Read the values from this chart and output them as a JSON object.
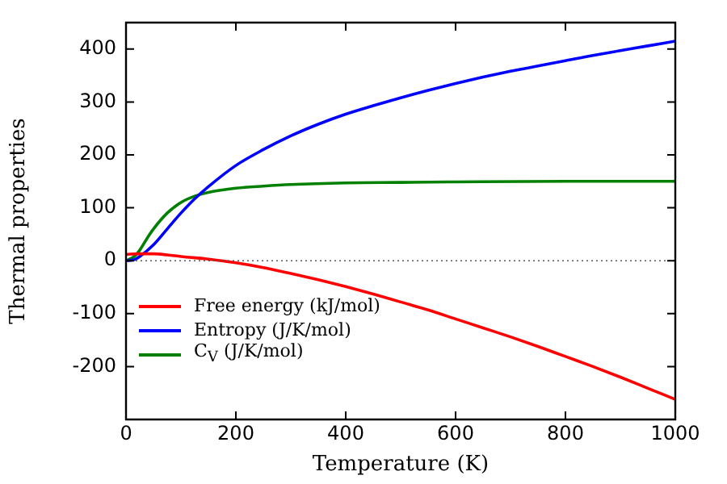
{
  "chart_data": {
    "type": "line",
    "xlabel": "Temperature (K)",
    "ylabel": "Thermal properties",
    "xlim": [
      0,
      1000
    ],
    "xticks": [
      0,
      200,
      400,
      600,
      800,
      1000
    ],
    "ylim": [
      -300,
      450
    ],
    "yticks": [
      -200,
      -100,
      0,
      100,
      200,
      300,
      400
    ],
    "grid": false,
    "legend": "bottom left",
    "marker": "none",
    "line_style": "solid",
    "ref_lines": [
      {
        "axis": "y",
        "value": 0,
        "color": "#555555",
        "line_style": "dotted"
      }
    ],
    "series": [
      {
        "name": "Free energy (kJ/mol)",
        "color": "#ff0000",
        "x": [
          0,
          25,
          50,
          75,
          100,
          150,
          200,
          250,
          300,
          350,
          400,
          450,
          500,
          550,
          600,
          650,
          700,
          750,
          800,
          850,
          900,
          950,
          1000
        ],
        "values": [
          12,
          13,
          13,
          11,
          8,
          3,
          -4,
          -13,
          -24,
          -36,
          -49,
          -63,
          -78,
          -93,
          -110,
          -127,
          -144,
          -162,
          -181,
          -200,
          -220,
          -241,
          -262
        ]
      },
      {
        "name": "Entropy (J/K/mol)",
        "color": "#0000ff",
        "x": [
          0,
          15,
          25,
          50,
          75,
          100,
          125,
          150,
          200,
          250,
          300,
          350,
          400,
          450,
          500,
          550,
          600,
          650,
          700,
          750,
          800,
          850,
          900,
          950,
          1000
        ],
        "values": [
          0,
          2,
          8,
          30,
          60,
          90,
          117,
          140,
          180,
          210,
          236,
          258,
          277,
          293,
          308,
          322,
          335,
          347,
          358,
          368,
          378,
          388,
          397,
          406,
          415
        ]
      },
      {
        "name": "C$_{V}$ (J/K/mol)",
        "color": "#008000",
        "x": [
          0,
          15,
          25,
          40,
          50,
          75,
          100,
          125,
          150,
          200,
          250,
          300,
          400,
          500,
          600,
          800,
          1000
        ],
        "values": [
          0,
          8,
          20,
          45,
          60,
          90,
          110,
          122,
          129,
          137,
          141,
          144,
          147,
          148,
          149,
          150,
          150
        ]
      }
    ]
  }
}
